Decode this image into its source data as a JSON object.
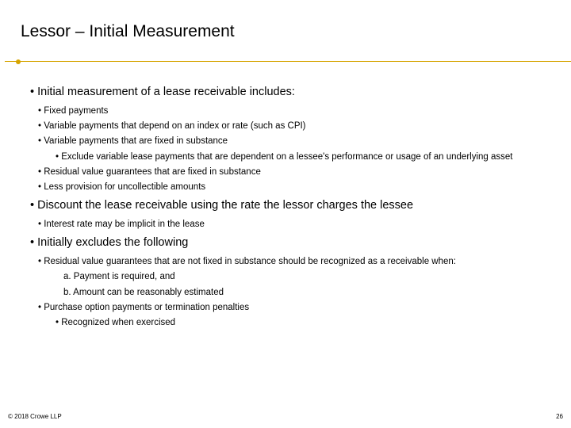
{
  "title": "Lessor – Initial Measurement",
  "divider": {
    "color": "#d6a400",
    "dot_size": 6
  },
  "bullets": {
    "l1_1": "Initial measurement of a lease receivable includes:",
    "l2_1": "Fixed payments",
    "l2_2": "Variable payments that depend on an index or rate (such as CPI)",
    "l2_3": "Variable payments that are fixed in substance",
    "l3_1": "Exclude variable lease payments that are dependent on a lessee's performance or usage of an underlying asset",
    "l2_4": "Residual value guarantees that are fixed in substance",
    "l2_5": "Less provision for uncollectible amounts",
    "l1_2": "Discount the lease receivable using the rate the lessor charges the lessee",
    "l2_6": "Interest rate may be implicit in the lease",
    "l1_3": "Initially excludes the following",
    "l2_7": "Residual value guarantees that are not fixed in substance should be recognized as a receivable when:",
    "ol_a": "a.    Payment is required, and",
    "ol_b": "b.    Amount can be reasonably estimated",
    "l2_8": "Purchase option payments or termination penalties",
    "l3_2": "Recognized when exercised"
  },
  "footer": {
    "copyright": "© 2018 Crowe LLP",
    "page": "26"
  },
  "typography": {
    "title_fontsize": 21,
    "l1_fontsize": 14.5,
    "l2_fontsize": 11.5,
    "l3_fontsize": 11.5,
    "footer_fontsize": 8
  },
  "colors": {
    "background": "#ffffff",
    "text": "#000000",
    "accent": "#d6a400"
  }
}
